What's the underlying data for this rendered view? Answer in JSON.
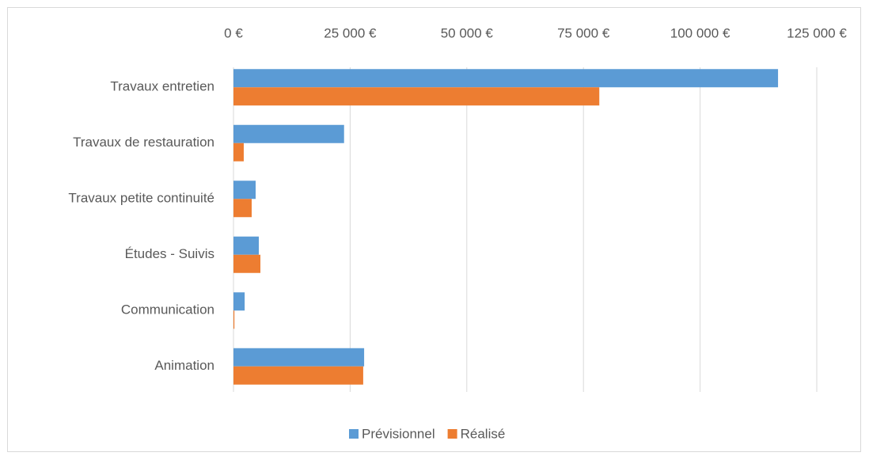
{
  "chart_data": {
    "type": "hbar",
    "categories": [
      "Travaux entretien",
      "Travaux de restauration",
      "Travaux petite continuité",
      "Études - Suivis",
      "Communication",
      "Animation"
    ],
    "series": [
      {
        "name": "Prévisionnel",
        "color": "#5b9bd5",
        "values": [
          116700,
          23700,
          4750,
          5430,
          2400,
          28000
        ]
      },
      {
        "name": "Réalisé",
        "color": "#ed7d31",
        "values": [
          78400,
          2200,
          3900,
          5770,
          200,
          27800
        ]
      }
    ],
    "xlim": [
      0,
      125000
    ],
    "xticks": [
      {
        "value": 0,
        "label": "0 €"
      },
      {
        "value": 25000,
        "label": "25 000 €"
      },
      {
        "value": 50000,
        "label": "50 000 €"
      },
      {
        "value": 75000,
        "label": "75 000 €"
      },
      {
        "value": 100000,
        "label": "100 000 €"
      },
      {
        "value": 125000,
        "label": "125 000 €"
      }
    ],
    "grid": true,
    "legend": "bottom"
  }
}
